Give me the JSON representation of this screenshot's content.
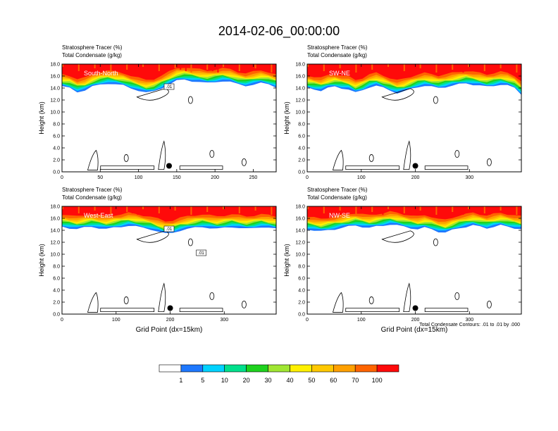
{
  "title": "2014-02-06_00:00:00",
  "colors": {
    "tracer_levels": [
      "#ffffff",
      "#1e78ff",
      "#00d2ff",
      "#00e08c",
      "#1ed21e",
      "#a0e632",
      "#fff000",
      "#ffc800",
      "#ffa000",
      "#ff6400",
      "#ff0a0a"
    ],
    "contour": "#000000",
    "marker": "#000000"
  },
  "colorbar": {
    "labels": [
      "1",
      "5",
      "10",
      "20",
      "30",
      "40",
      "50",
      "60",
      "70",
      "100"
    ]
  },
  "footnote": "Total Condensate Contours: .01 to .01 by .000",
  "chart_data": [
    {
      "type": "heatmap",
      "title_lines": [
        "Stratosphere Tracer   (%)",
        "Total Condensate   (g/kg)"
      ],
      "section": "South-North",
      "ylabel": "Height (km)",
      "xlabel": "",
      "ylim": [
        0,
        18
      ],
      "yticks": [
        "0.0",
        "2.0",
        "4.0",
        "6.0",
        "8.0",
        "10.0",
        "12.0",
        "14.0",
        "16.0",
        "18.0"
      ],
      "xlim": [
        0,
        280
      ],
      "xticks": [
        0,
        50,
        100,
        150,
        200,
        250
      ],
      "tracer_layer_base_km": [
        14.2,
        14.0,
        13.4,
        13.6,
        14.2,
        14.6,
        14.8,
        14.6,
        14.4,
        14.0,
        13.6,
        13.2,
        13.4,
        14.0,
        14.6,
        15.2,
        15.4,
        15.2,
        15.0,
        14.8,
        15.0,
        15.2,
        15.0,
        14.6,
        14.4,
        14.6,
        14.8,
        14.6,
        14.2
      ],
      "contour_labels": [
        ".01"
      ],
      "marker": {
        "x": 140,
        "y_km": 1.0
      }
    },
    {
      "type": "heatmap",
      "title_lines": [
        "Stratosphere Tracer   (%)",
        "Total Condensate   (g/kg)"
      ],
      "section": "SW-NE",
      "ylabel": "Height (km)",
      "xlabel": "",
      "ylim": [
        0,
        18
      ],
      "yticks": [
        "0.0",
        "2.0",
        "4.0",
        "6.0",
        "8.0",
        "10.0",
        "12.0",
        "14.0",
        "16.0",
        "18.0"
      ],
      "xlim": [
        0,
        396
      ],
      "xticks": [
        0,
        100,
        200,
        300
      ],
      "tracer_layer_base_km": [
        14.0,
        13.8,
        13.6,
        14.0,
        14.2,
        14.0,
        13.8,
        13.2,
        13.6,
        14.2,
        14.4,
        14.0,
        13.6,
        13.2,
        13.4,
        13.8,
        14.2,
        14.4,
        14.2,
        14.0,
        14.2,
        14.4,
        14.6,
        14.8,
        14.6,
        14.4,
        14.2,
        14.4,
        14.6,
        14.4,
        14.0,
        13.0
      ],
      "contour_labels": [],
      "marker": {
        "x": 200,
        "y_km": 1.0
      }
    },
    {
      "type": "heatmap",
      "title_lines": [
        "Stratosphere Tracer   (%)",
        "Total Condensate   (g/kg)"
      ],
      "section": "West-East",
      "ylabel": "Height (km)",
      "xlabel": "Grid Point (dx=15km)",
      "ylim": [
        0,
        18
      ],
      "yticks": [
        "0.0",
        "2.0",
        "4.0",
        "6.0",
        "8.0",
        "10.0",
        "12.0",
        "14.0",
        "16.0",
        "18.0"
      ],
      "xlim": [
        0,
        396
      ],
      "xticks": [
        0,
        100,
        200,
        300
      ],
      "tracer_layer_base_km": [
        14.6,
        14.4,
        14.2,
        14.4,
        14.6,
        14.4,
        14.2,
        14.4,
        14.6,
        14.8,
        14.6,
        14.4,
        14.2,
        13.8,
        13.4,
        13.6,
        14.0,
        14.2,
        14.4,
        14.6,
        14.4,
        14.2,
        14.4,
        14.6,
        14.4,
        14.2,
        14.4,
        14.6,
        14.4,
        14.2
      ],
      "contour_labels": [
        ".01",
        ".01"
      ],
      "marker": {
        "x": 200,
        "y_km": 1.0
      }
    },
    {
      "type": "heatmap",
      "title_lines": [
        "Stratosphere Tracer   (%)",
        "Total Condensate   (g/kg)"
      ],
      "section": "NW-SE",
      "ylabel": "Height (km)",
      "xlabel": "Grid Point (dx=15km)",
      "ylim": [
        0,
        18
      ],
      "yticks": [
        "0.0",
        "2.0",
        "4.0",
        "6.0",
        "8.0",
        "10.0",
        "12.0",
        "14.0",
        "16.0",
        "18.0"
      ],
      "xlim": [
        0,
        396
      ],
      "xticks": [
        0,
        100,
        200,
        300
      ],
      "tracer_layer_base_km": [
        14.2,
        14.0,
        13.8,
        14.0,
        14.2,
        14.4,
        14.6,
        14.8,
        14.6,
        14.4,
        14.6,
        14.8,
        15.0,
        14.8,
        14.6,
        14.4,
        14.2,
        14.4,
        14.2,
        13.8,
        13.6,
        14.0,
        14.4,
        14.6,
        14.8,
        14.6,
        14.4,
        14.6,
        14.8,
        14.6,
        14.4,
        14.2
      ],
      "contour_labels": [],
      "marker": {
        "x": 200,
        "y_km": 1.0
      }
    }
  ]
}
